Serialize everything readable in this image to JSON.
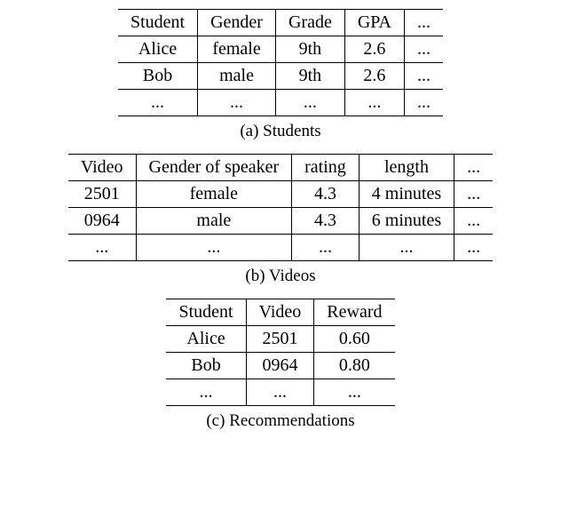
{
  "students": {
    "caption": "(a) Students",
    "columns": [
      "Student",
      "Gender",
      "Grade",
      "GPA",
      "..."
    ],
    "rows": [
      [
        "Alice",
        "female",
        "9th",
        "2.6",
        "..."
      ],
      [
        "Bob",
        "male",
        "9th",
        "2.6",
        "..."
      ],
      [
        "...",
        "...",
        "...",
        "...",
        "..."
      ]
    ]
  },
  "videos": {
    "caption": "(b) Videos",
    "columns": [
      "Video",
      "Gender of speaker",
      "rating",
      "length",
      "..."
    ],
    "rows": [
      [
        "2501",
        "female",
        "4.3",
        "4 minutes",
        "..."
      ],
      [
        "0964",
        "male",
        "4.3",
        "6 minutes",
        "..."
      ],
      [
        "...",
        "...",
        "...",
        "...",
        "..."
      ]
    ]
  },
  "recommendations": {
    "caption": "(c) Recommendations",
    "columns": [
      "Student",
      "Video",
      "Reward"
    ],
    "rows": [
      [
        "Alice",
        "2501",
        "0.60"
      ],
      [
        "Bob",
        "0964",
        "0.80"
      ],
      [
        "...",
        "...",
        "..."
      ]
    ]
  }
}
